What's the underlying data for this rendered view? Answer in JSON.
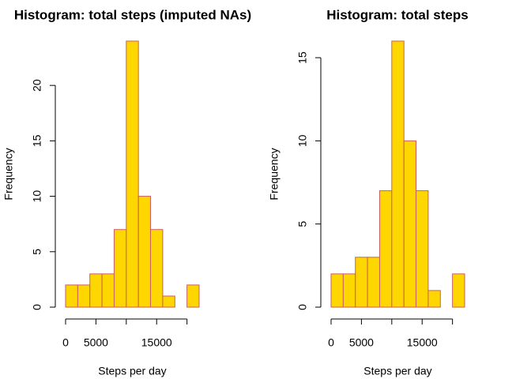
{
  "chart_data": [
    {
      "type": "histogram",
      "title": "Histogram: total steps (imputed NAs)",
      "x_label": "Steps per day",
      "y_label": "Frequency",
      "bins": [
        0,
        2000,
        4000,
        6000,
        8000,
        10000,
        12000,
        14000,
        16000,
        18000,
        20000,
        22000
      ],
      "counts": [
        2,
        2,
        3,
        3,
        7,
        24,
        10,
        7,
        1,
        0,
        2
      ],
      "color": "#ffd700",
      "edge_color": "#cd5c5c",
      "xlim": [
        0,
        22000
      ],
      "xticks": [
        0,
        5000,
        {
          "value": 10000,
          "label": null
        },
        15000,
        {
          "value": 20000,
          "label": null
        }
      ],
      "ylim": [
        0,
        24
      ],
      "yticks": [
        0,
        5,
        10,
        15,
        20
      ]
    },
    {
      "type": "histogram",
      "title": "Histogram: total steps",
      "x_label": "Steps per day",
      "y_label": "Frequency",
      "bins": [
        0,
        2000,
        4000,
        6000,
        8000,
        10000,
        12000,
        14000,
        16000,
        18000,
        20000,
        22000
      ],
      "counts": [
        2,
        2,
        3,
        3,
        7,
        16,
        10,
        7,
        1,
        0,
        2
      ],
      "color": "#ffd700",
      "edge_color": "#cd5c5c",
      "xlim": [
        0,
        22000
      ],
      "xticks": [
        0,
        5000,
        {
          "value": 10000,
          "label": null
        },
        15000,
        {
          "value": 20000,
          "label": null
        }
      ],
      "ylim": [
        0,
        16
      ],
      "yticks": [
        0,
        5,
        10,
        15
      ]
    }
  ]
}
